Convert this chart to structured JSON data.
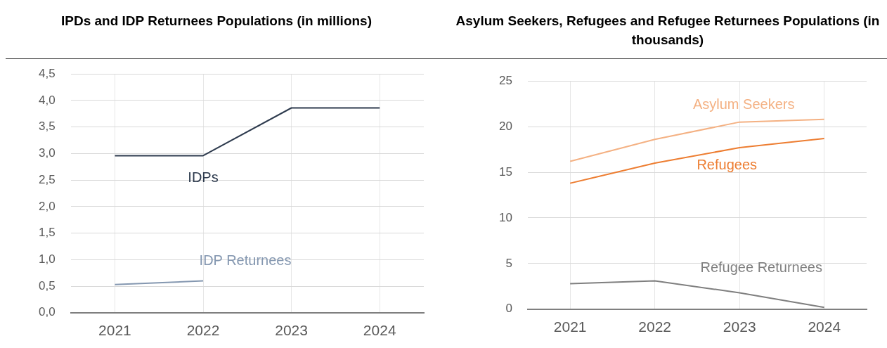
{
  "chart_data": [
    {
      "type": "line",
      "title": "IPDs and IDP Returnees Populations (in millions)",
      "categories": [
        "2021",
        "2022",
        "2023",
        "2024"
      ],
      "series": [
        {
          "name": "IDPs",
          "color": "#2e3b4e",
          "values": [
            2.96,
            2.96,
            3.86,
            3.86
          ]
        },
        {
          "name": "IDP Returnees",
          "color": "#8497b0",
          "values": [
            0.53,
            0.6,
            null,
            null
          ]
        }
      ],
      "ylim": [
        0,
        4.5
      ],
      "yticks": [
        {
          "value": 0,
          "label": "0,0"
        },
        {
          "value": 0.5,
          "label": "0,5"
        },
        {
          "value": 1,
          "label": "1,0"
        },
        {
          "value": 1.5,
          "label": "1,5"
        },
        {
          "value": 2,
          "label": "2,0"
        },
        {
          "value": 2.5,
          "label": "2,5"
        },
        {
          "value": 3,
          "label": "3,0"
        },
        {
          "value": 3.5,
          "label": "3,5"
        },
        {
          "value": 4,
          "label": "4,0"
        },
        {
          "value": 4.5,
          "label": "4,5"
        }
      ],
      "grid": true,
      "marker": "none"
    },
    {
      "type": "line",
      "title": "Asylum Seekers, Refugees and Refugee Returnees Populations (in thousands)",
      "categories": [
        "2021",
        "2022",
        "2023",
        "2024"
      ],
      "series": [
        {
          "name": "Asylum Seekers",
          "color": "#f4b183",
          "values": [
            16.2,
            18.6,
            20.5,
            20.8
          ]
        },
        {
          "name": "Refugees",
          "color": "#ed7d31",
          "values": [
            13.8,
            16.0,
            17.7,
            18.7
          ]
        },
        {
          "name": "Refugee Returnees",
          "color": "#7f7f7f",
          "values": [
            2.8,
            3.1,
            1.8,
            0.2
          ]
        }
      ],
      "ylim": [
        0,
        25
      ],
      "yticks": [
        0,
        5,
        10,
        15,
        20,
        25
      ],
      "grid": true,
      "marker": "none"
    }
  ]
}
